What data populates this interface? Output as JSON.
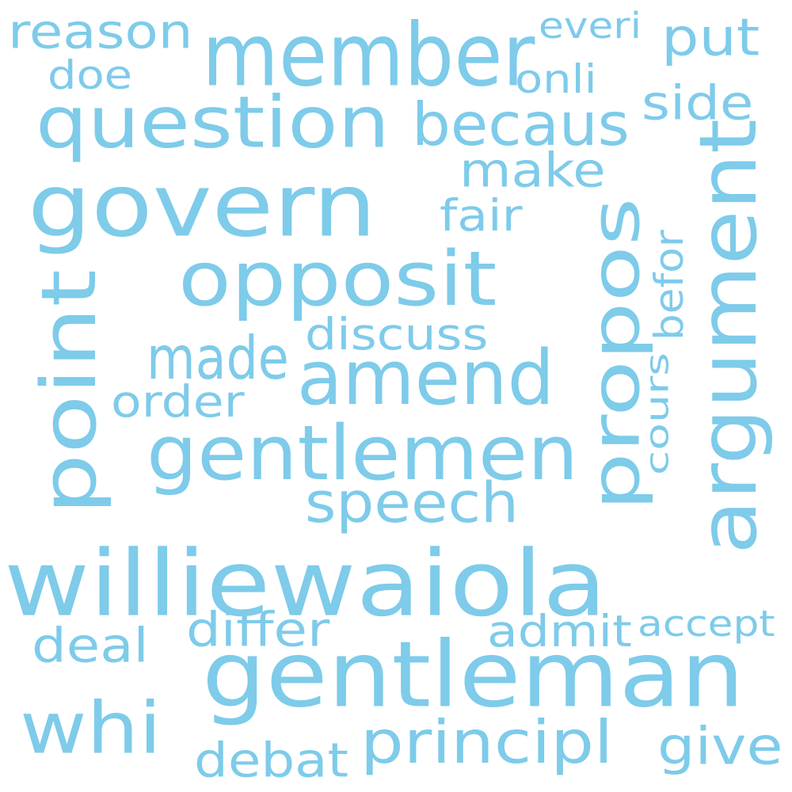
{
  "cloud": {
    "color": "#7ecbea",
    "words": [
      {
        "text": "williewaiola"
      },
      {
        "text": "gentleman"
      },
      {
        "text": "govern"
      },
      {
        "text": "member"
      },
      {
        "text": "question"
      },
      {
        "text": "opposit"
      },
      {
        "text": "amend"
      },
      {
        "text": "gentlemen"
      },
      {
        "text": "point"
      },
      {
        "text": "argument"
      },
      {
        "text": "propos"
      },
      {
        "text": "whi"
      },
      {
        "text": "principl"
      },
      {
        "text": "becaus"
      },
      {
        "text": "speech"
      },
      {
        "text": "made"
      },
      {
        "text": "differ"
      },
      {
        "text": "deal"
      },
      {
        "text": "admit"
      },
      {
        "text": "discuss"
      },
      {
        "text": "make"
      },
      {
        "text": "order"
      },
      {
        "text": "reason"
      },
      {
        "text": "put"
      },
      {
        "text": "debat"
      },
      {
        "text": "give"
      },
      {
        "text": "fair"
      },
      {
        "text": "side"
      },
      {
        "text": "onli"
      },
      {
        "text": "doe"
      },
      {
        "text": "accept"
      },
      {
        "text": "befor"
      },
      {
        "text": "cours"
      },
      {
        "text": "everi"
      }
    ]
  }
}
